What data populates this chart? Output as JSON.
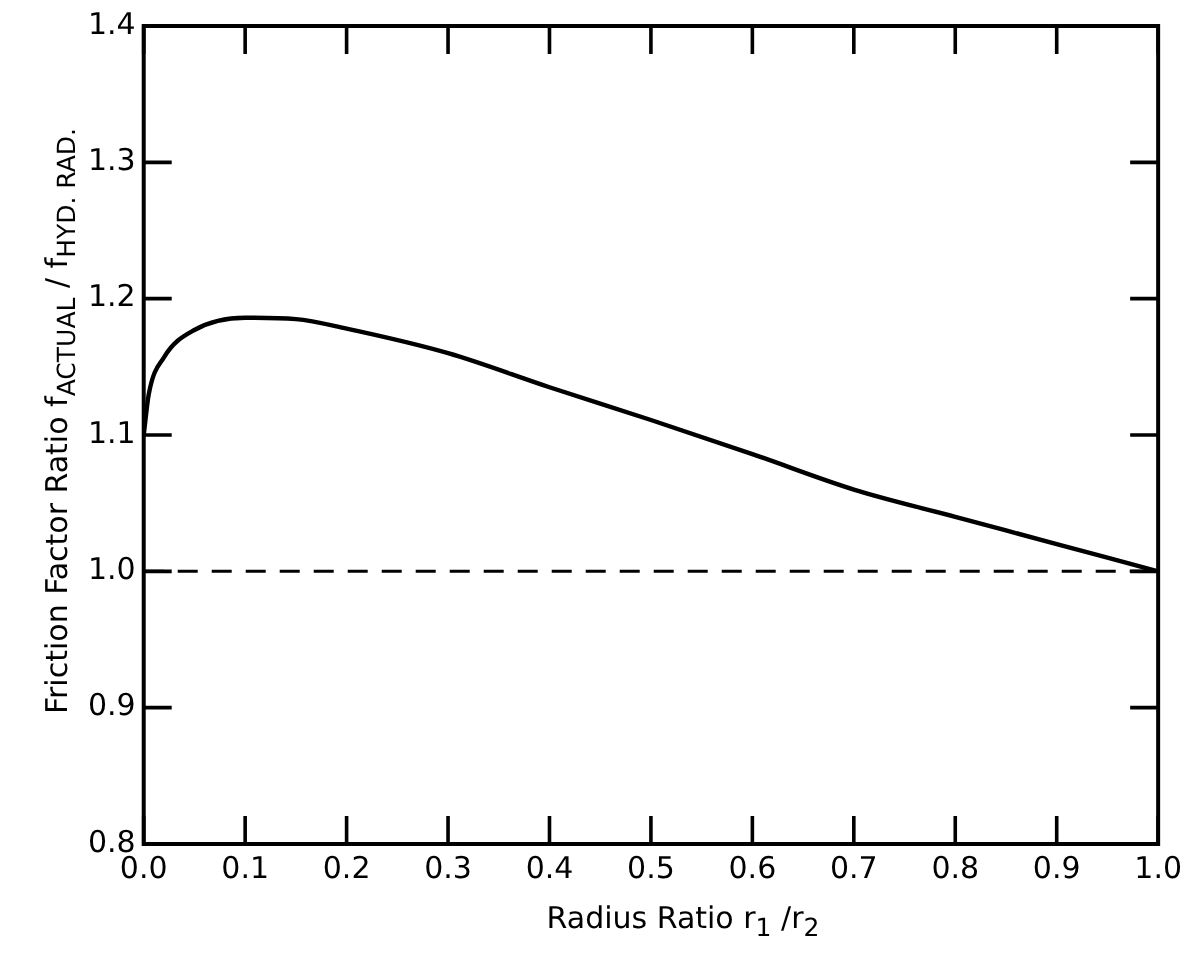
{
  "chart_data": {
    "type": "line",
    "xlabel": "Radius Ratio  r$_{1}$ /r$_{2}$",
    "ylabel": "Friction Factor Ratio   f$_{ACTUAL}$ / f$_{HYD. RAD.}$",
    "series": [
      {
        "color": "#000000",
        "x": [
          0,
          0.005,
          0.02,
          0.05,
          0.1,
          0.15,
          0.2,
          0.3,
          0.4,
          0.5,
          0.6,
          0.7,
          0.8,
          0.9,
          1.0
        ],
        "values": [
          1.1,
          1.13,
          1.157,
          1.177,
          1.186,
          1.185,
          1.178,
          1.16,
          1.135,
          1.111,
          1.086,
          1.06,
          1.04,
          1.02,
          1.0
        ]
      }
    ],
    "xlim": [
      0,
      1
    ],
    "ylim": [
      0.8,
      1.4
    ],
    "xticks": [
      {
        "value": 0,
        "label": "0.0"
      },
      0.1,
      0.2,
      0.3,
      0.4,
      0.5,
      0.6,
      0.7,
      0.8,
      0.9,
      {
        "value": 1,
        "label": "1.0"
      }
    ],
    "yticks": [
      0.8,
      0.9,
      {
        "value": 1,
        "label": "1.0"
      },
      1.1,
      1.2,
      1.3,
      1.4
    ],
    "ref_lines": [
      {
        "axis": "y",
        "value": 1.0,
        "color": "#000000",
        "line_style": "dashed"
      }
    ],
    "grid": false,
    "legend": false,
    "marker": "none",
    "line_style": "solid"
  }
}
